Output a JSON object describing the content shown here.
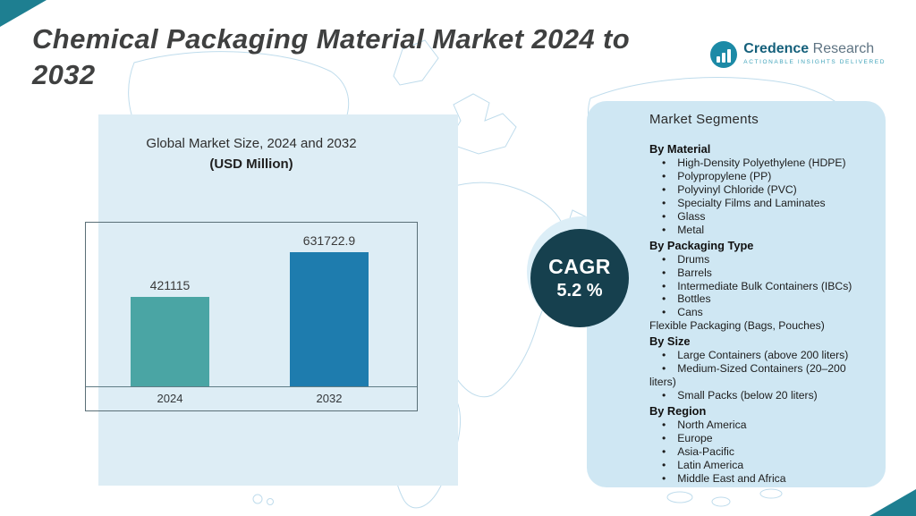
{
  "header": {
    "title_line1": "Chemical Packaging Material Market  2024 to",
    "title_line2": "2032"
  },
  "logo": {
    "brand": "Credence",
    "brand2": "Research",
    "tagline": "Actionable Insights Delivered"
  },
  "chart_panel": {
    "heading": "Global Market Size, 2024 and 2032",
    "subheading": "(USD Million)"
  },
  "chart_data": {
    "type": "bar",
    "title": "Global Market Size, 2024 and 2032",
    "ylabel": "USD Million",
    "categories": [
      "2024",
      "2032"
    ],
    "values": [
      421115,
      631722.9
    ],
    "value_labels": [
      "421115",
      "631722.9"
    ],
    "bar_colors": [
      "#4aa5a4",
      "#1e7cae"
    ],
    "ylim": [
      0,
      700000
    ],
    "grid": false,
    "legend": false
  },
  "cagr": {
    "label": "CAGR",
    "value": "5.2 %"
  },
  "segments": {
    "title": "Market Segments",
    "groups": [
      {
        "heading": "By Material",
        "items": [
          "High-Density Polyethylene (HDPE)",
          "Polypropylene (PP)",
          "Polyvinyl Chloride (PVC)",
          "Specialty Films and Laminates",
          "Glass",
          "Metal"
        ]
      },
      {
        "heading": "By Packaging Type",
        "items": [
          "Drums",
          "Barrels",
          "Intermediate Bulk Containers (IBCs)",
          "Bottles",
          "Cans",
          "Flexible Packaging (Bags, Pouches)"
        ]
      },
      {
        "heading": "By Size",
        "items": [
          "Large Containers (above 200 liters)",
          "Medium-Sized Containers (20–200 liters)",
          "Small Packs (below 20 liters)"
        ]
      },
      {
        "heading": "By Region",
        "items": [
          "North America",
          "Europe",
          "Asia-Pacific",
          "Latin America",
          "Middle East and Africa"
        ]
      }
    ]
  },
  "colors": {
    "accent_teal": "#1e7f91",
    "left_panel_bg": "#ddedf5",
    "right_panel_bg": "#cfe7f3",
    "cagr_circle": "#16404e",
    "bar_2024": "#4aa5a4",
    "bar_2032": "#1e7cae"
  }
}
